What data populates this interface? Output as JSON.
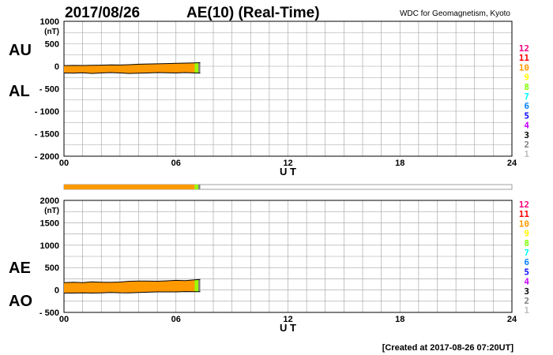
{
  "header": {
    "date": "2017/08/26",
    "title": "AE(10) (Real-Time)",
    "source": "WDC for Geomagnetism, Kyoto"
  },
  "footer": {
    "created": "[Created at 2017-08-26 07:20UT]"
  },
  "station_legend": [
    "12",
    "11",
    "10",
    "9",
    "8",
    "7",
    "6",
    "5",
    "4",
    "3",
    "2",
    "1"
  ],
  "colors": {
    "fill": "#ff9900",
    "recent": "#99ff00",
    "latest": "#808080",
    "grid": "#a0a0a0",
    "legend": [
      "#ff0080",
      "#ff0000",
      "#ff9900",
      "#ffff00",
      "#80ff00",
      "#00ffff",
      "#0080ff",
      "#0000ff",
      "#cc00ff",
      "#000000",
      "#808080",
      "#c0c0c0"
    ]
  },
  "chart_data": [
    {
      "type": "area",
      "panel": "AU/AL",
      "series_labels": [
        "AU",
        "AL"
      ],
      "ylabel": "(nT)",
      "xlabel": "U T",
      "xlim": [
        0,
        24
      ],
      "ylim": [
        -2000,
        1000
      ],
      "x_ticks": [
        "00",
        "06",
        "12",
        "18",
        "24"
      ],
      "y_ticks": [
        "1000",
        "500",
        "0",
        "- 500",
        "- 1000",
        "- 1500",
        "- 2000"
      ],
      "y_tick_values": [
        1000,
        500,
        0,
        -500,
        -1000,
        -1500,
        -2000
      ],
      "grid": true,
      "x": [
        0,
        0.5,
        1,
        1.5,
        2,
        2.5,
        3,
        3.5,
        4,
        4.5,
        5,
        5.5,
        6,
        6.5,
        7,
        7.3
      ],
      "series": [
        {
          "name": "AU",
          "values": [
            15,
            20,
            18,
            22,
            25,
            30,
            28,
            35,
            45,
            50,
            55,
            60,
            65,
            70,
            75,
            80
          ]
        },
        {
          "name": "AL",
          "values": [
            -150,
            -155,
            -145,
            -160,
            -150,
            -140,
            -150,
            -160,
            -155,
            -150,
            -140,
            -145,
            -150,
            -140,
            -150,
            -155
          ]
        }
      ]
    },
    {
      "type": "area",
      "panel": "AE/AO",
      "series_labels": [
        "AE",
        "AO"
      ],
      "ylabel": "(nT)",
      "xlabel": "U T",
      "xlim": [
        0,
        24
      ],
      "ylim": [
        -500,
        2000
      ],
      "x_ticks": [
        "00",
        "06",
        "12",
        "18",
        "24"
      ],
      "y_ticks": [
        "2000",
        "1500",
        "1000",
        "500",
        "0",
        "- 500"
      ],
      "y_tick_values": [
        2000,
        1500,
        1000,
        500,
        0,
        -500
      ],
      "grid": true,
      "x": [
        0,
        0.5,
        1,
        1.5,
        2,
        2.5,
        3,
        3.5,
        4,
        4.5,
        5,
        5.5,
        6,
        6.5,
        7,
        7.3
      ],
      "series": [
        {
          "name": "AE",
          "values": [
            165,
            175,
            163,
            182,
            175,
            170,
            178,
            195,
            200,
            200,
            195,
            205,
            215,
            210,
            225,
            235
          ]
        },
        {
          "name": "AO",
          "values": [
            -68,
            -68,
            -64,
            -69,
            -63,
            -55,
            -61,
            -63,
            -55,
            -50,
            -43,
            -43,
            -43,
            -35,
            -38,
            -38
          ]
        }
      ]
    }
  ],
  "coverage_bar": {
    "range_hours": [
      0,
      7.3
    ],
    "recent_from": 7.0,
    "latest_from": 7.2,
    "xlim": [
      0,
      24
    ]
  }
}
